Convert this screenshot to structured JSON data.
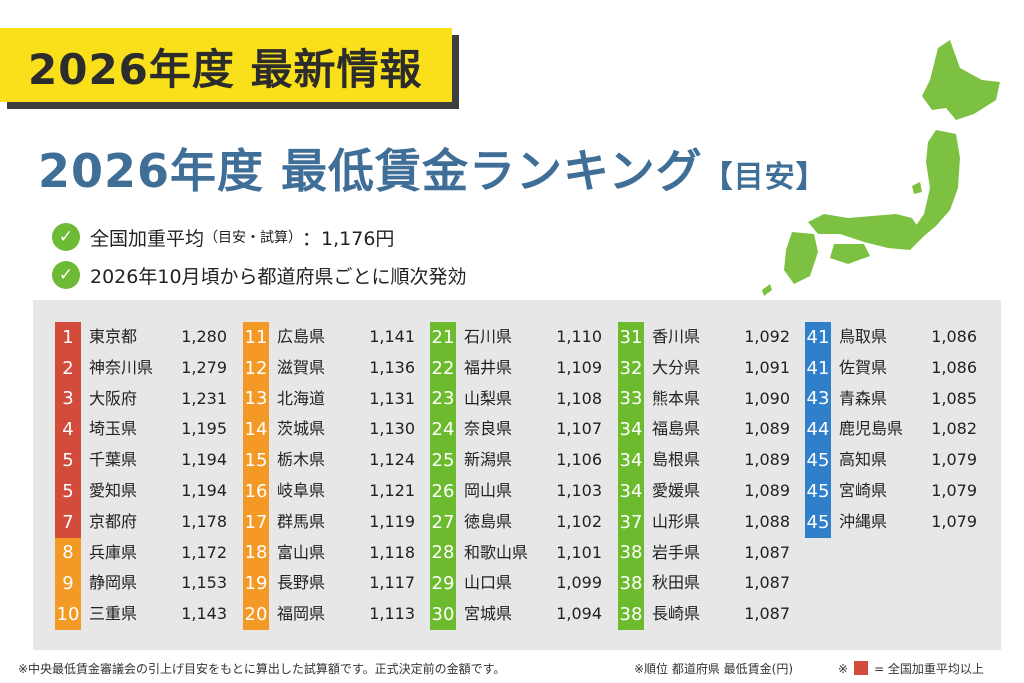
{
  "header": {
    "banner": "2026年度 最新情報",
    "title_main": "2026年度 最低賃金ランキング",
    "title_sub": "【目安】"
  },
  "bullets": [
    {
      "text": "全国加重平均",
      "small": "（目安・試算）",
      "value": "：1,176円"
    },
    {
      "text": "2026年10月頃から都道府県ごとに順次発効",
      "small": "",
      "value": ""
    }
  ],
  "colors": {
    "above_average": "#d34b3b",
    "orange": "#f39a26",
    "green": "#6cbb2e",
    "blue": "#2f7fca",
    "map": "#7dc142",
    "title": "#3f6e97",
    "banner": "#f9e01b"
  },
  "chart_data": {
    "type": "table",
    "columns": [
      "順位",
      "都道府県",
      "最低賃金(円)"
    ],
    "rows": [
      {
        "rank": "1",
        "pref": "東京都",
        "wage": 1280,
        "wage_label": "1,280",
        "color": "#d34b3b"
      },
      {
        "rank": "2",
        "pref": "神奈川県",
        "wage": 1279,
        "wage_label": "1,279",
        "color": "#d34b3b"
      },
      {
        "rank": "3",
        "pref": "大阪府",
        "wage": 1231,
        "wage_label": "1,231",
        "color": "#d34b3b"
      },
      {
        "rank": "4",
        "pref": "埼玉県",
        "wage": 1195,
        "wage_label": "1,195",
        "color": "#d34b3b"
      },
      {
        "rank": "5",
        "pref": "千葉県",
        "wage": 1194,
        "wage_label": "1,194",
        "color": "#d34b3b"
      },
      {
        "rank": "5",
        "pref": "愛知県",
        "wage": 1194,
        "wage_label": "1,194",
        "color": "#d34b3b"
      },
      {
        "rank": "7",
        "pref": "京都府",
        "wage": 1178,
        "wage_label": "1,178",
        "color": "#d34b3b"
      },
      {
        "rank": "8",
        "pref": "兵庫県",
        "wage": 1172,
        "wage_label": "1,172",
        "color": "#f39a26"
      },
      {
        "rank": "9",
        "pref": "静岡県",
        "wage": 1153,
        "wage_label": "1,153",
        "color": "#f39a26"
      },
      {
        "rank": "10",
        "pref": "三重県",
        "wage": 1143,
        "wage_label": "1,143",
        "color": "#f39a26"
      },
      {
        "rank": "11",
        "pref": "広島県",
        "wage": 1141,
        "wage_label": "1,141",
        "color": "#f39a26"
      },
      {
        "rank": "12",
        "pref": "滋賀県",
        "wage": 1136,
        "wage_label": "1,136",
        "color": "#f39a26"
      },
      {
        "rank": "13",
        "pref": "北海道",
        "wage": 1131,
        "wage_label": "1,131",
        "color": "#f39a26"
      },
      {
        "rank": "14",
        "pref": "茨城県",
        "wage": 1130,
        "wage_label": "1,130",
        "color": "#f39a26"
      },
      {
        "rank": "15",
        "pref": "栃木県",
        "wage": 1124,
        "wage_label": "1,124",
        "color": "#f39a26"
      },
      {
        "rank": "16",
        "pref": "岐阜県",
        "wage": 1121,
        "wage_label": "1,121",
        "color": "#f39a26"
      },
      {
        "rank": "17",
        "pref": "群馬県",
        "wage": 1119,
        "wage_label": "1,119",
        "color": "#f39a26"
      },
      {
        "rank": "18",
        "pref": "富山県",
        "wage": 1118,
        "wage_label": "1,118",
        "color": "#f39a26"
      },
      {
        "rank": "19",
        "pref": "長野県",
        "wage": 1117,
        "wage_label": "1,117",
        "color": "#f39a26"
      },
      {
        "rank": "20",
        "pref": "福岡県",
        "wage": 1113,
        "wage_label": "1,113",
        "color": "#f39a26"
      },
      {
        "rank": "21",
        "pref": "石川県",
        "wage": 1110,
        "wage_label": "1,110",
        "color": "#6cbb2e"
      },
      {
        "rank": "22",
        "pref": "福井県",
        "wage": 1109,
        "wage_label": "1,109",
        "color": "#6cbb2e"
      },
      {
        "rank": "23",
        "pref": "山梨県",
        "wage": 1108,
        "wage_label": "1,108",
        "color": "#6cbb2e"
      },
      {
        "rank": "24",
        "pref": "奈良県",
        "wage": 1107,
        "wage_label": "1,107",
        "color": "#6cbb2e"
      },
      {
        "rank": "25",
        "pref": "新潟県",
        "wage": 1106,
        "wage_label": "1,106",
        "color": "#6cbb2e"
      },
      {
        "rank": "26",
        "pref": "岡山県",
        "wage": 1103,
        "wage_label": "1,103",
        "color": "#6cbb2e"
      },
      {
        "rank": "27",
        "pref": "徳島県",
        "wage": 1102,
        "wage_label": "1,102",
        "color": "#6cbb2e"
      },
      {
        "rank": "28",
        "pref": "和歌山県",
        "wage": 1101,
        "wage_label": "1,101",
        "color": "#6cbb2e"
      },
      {
        "rank": "29",
        "pref": "山口県",
        "wage": 1099,
        "wage_label": "1,099",
        "color": "#6cbb2e"
      },
      {
        "rank": "30",
        "pref": "宮城県",
        "wage": 1094,
        "wage_label": "1,094",
        "color": "#6cbb2e"
      },
      {
        "rank": "31",
        "pref": "香川県",
        "wage": 1092,
        "wage_label": "1,092",
        "color": "#6cbb2e"
      },
      {
        "rank": "32",
        "pref": "大分県",
        "wage": 1091,
        "wage_label": "1,091",
        "color": "#6cbb2e"
      },
      {
        "rank": "33",
        "pref": "熊本県",
        "wage": 1090,
        "wage_label": "1,090",
        "color": "#6cbb2e"
      },
      {
        "rank": "34",
        "pref": "福島県",
        "wage": 1089,
        "wage_label": "1,089",
        "color": "#6cbb2e"
      },
      {
        "rank": "34",
        "pref": "島根県",
        "wage": 1089,
        "wage_label": "1,089",
        "color": "#6cbb2e"
      },
      {
        "rank": "34",
        "pref": "愛媛県",
        "wage": 1089,
        "wage_label": "1,089",
        "color": "#6cbb2e"
      },
      {
        "rank": "37",
        "pref": "山形県",
        "wage": 1088,
        "wage_label": "1,088",
        "color": "#6cbb2e"
      },
      {
        "rank": "38",
        "pref": "岩手県",
        "wage": 1087,
        "wage_label": "1,087",
        "color": "#6cbb2e"
      },
      {
        "rank": "38",
        "pref": "秋田県",
        "wage": 1087,
        "wage_label": "1,087",
        "color": "#6cbb2e"
      },
      {
        "rank": "38",
        "pref": "長崎県",
        "wage": 1087,
        "wage_label": "1,087",
        "color": "#6cbb2e"
      },
      {
        "rank": "41",
        "pref": "鳥取県",
        "wage": 1086,
        "wage_label": "1,086",
        "color": "#2f7fca"
      },
      {
        "rank": "41",
        "pref": "佐賀県",
        "wage": 1086,
        "wage_label": "1,086",
        "color": "#2f7fca"
      },
      {
        "rank": "43",
        "pref": "青森県",
        "wage": 1085,
        "wage_label": "1,085",
        "color": "#2f7fca"
      },
      {
        "rank": "44",
        "pref": "鹿児島県",
        "wage": 1082,
        "wage_label": "1,082",
        "color": "#2f7fca"
      },
      {
        "rank": "45",
        "pref": "高知県",
        "wage": 1079,
        "wage_label": "1,079",
        "color": "#2f7fca"
      },
      {
        "rank": "45",
        "pref": "宮崎県",
        "wage": 1079,
        "wage_label": "1,079",
        "color": "#2f7fca"
      },
      {
        "rank": "45",
        "pref": "沖縄県",
        "wage": 1079,
        "wage_label": "1,079",
        "color": "#2f7fca"
      }
    ]
  },
  "footer": {
    "note": "※中央最低賃金審議会の引上げ目安をもとに算出した試算額です。正式決定前の金額です。",
    "key": "※順位 都道府県 最低賃金(円)",
    "legend_prefix": "※",
    "legend_text": "= 全国加重平均以上"
  }
}
